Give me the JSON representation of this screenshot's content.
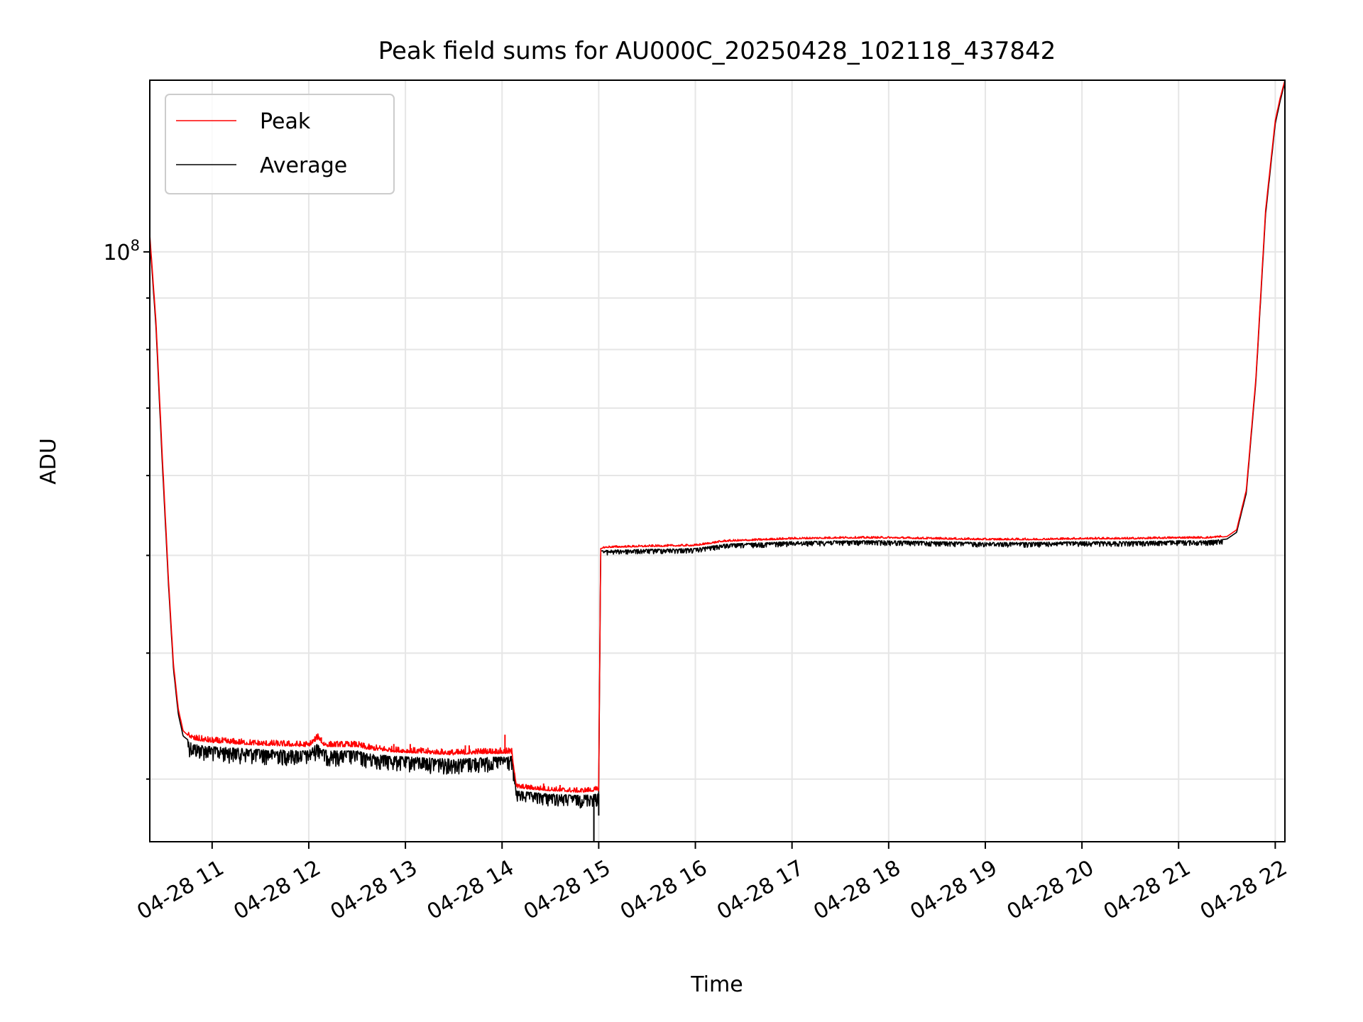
{
  "chart_data": {
    "type": "line",
    "title": "Peak field sums for AU000C_20250428_102118_437842",
    "xlabel": "Time",
    "ylabel": "ADU",
    "y_scale": "log",
    "y_major_tick": {
      "value": 100000000,
      "label_base": "10",
      "label_exp": "8"
    },
    "ylim": [
      26000000,
      148000000
    ],
    "x_unit": "hours on 2025-04-28",
    "xlim": [
      10.355,
      22.1
    ],
    "x_ticks": [
      {
        "value": 11,
        "label": "04-28 11"
      },
      {
        "value": 12,
        "label": "04-28 12"
      },
      {
        "value": 13,
        "label": "04-28 13"
      },
      {
        "value": 14,
        "label": "04-28 14"
      },
      {
        "value": 15,
        "label": "04-28 15"
      },
      {
        "value": 16,
        "label": "04-28 16"
      },
      {
        "value": 17,
        "label": "04-28 17"
      },
      {
        "value": 18,
        "label": "04-28 18"
      },
      {
        "value": 19,
        "label": "04-28 19"
      },
      {
        "value": 20,
        "label": "04-28 20"
      },
      {
        "value": 21,
        "label": "04-28 21"
      },
      {
        "value": 22,
        "label": "04-28 22"
      }
    ],
    "grid": true,
    "legend_position": "top-left",
    "series": [
      {
        "name": "Peak",
        "color": "#ff0000",
        "noise": "upper",
        "x": [
          10.355,
          10.42,
          10.48,
          10.55,
          10.6,
          10.65,
          10.7,
          10.8,
          11.0,
          11.5,
          12.0,
          12.1,
          12.15,
          12.2,
          12.5,
          12.6,
          12.9,
          13.2,
          13.5,
          13.8,
          14.1,
          14.15,
          14.3,
          14.5,
          14.8,
          15.0,
          15.02,
          15.1,
          15.5,
          16.0,
          16.3,
          17.0,
          17.5,
          18.0,
          19.0,
          19.5,
          20.0,
          20.5,
          21.0,
          21.3,
          21.5,
          21.6,
          21.7,
          21.8,
          21.9,
          22.0,
          22.05,
          22.1
        ],
        "y": [
          104000000,
          85000000,
          64000000,
          47000000,
          39000000,
          35200000,
          33500000,
          32800000,
          32600000,
          32400000,
          32300000,
          32900000,
          32400000,
          32300000,
          32300000,
          32100000,
          31900000,
          31800000,
          31700000,
          31800000,
          31800000,
          29400000,
          29300000,
          29200000,
          29100000,
          29200000,
          50800000,
          50900000,
          51000000,
          51100000,
          51600000,
          51900000,
          52000000,
          52000000,
          51800000,
          51800000,
          51900000,
          51900000,
          52000000,
          52000000,
          52200000,
          53000000,
          58000000,
          75000000,
          110000000,
          135000000,
          142000000,
          148000000
        ]
      },
      {
        "name": "Average",
        "color": "#000000",
        "noise": "lower",
        "x": [
          10.355,
          10.42,
          10.48,
          10.55,
          10.6,
          10.65,
          10.7,
          10.8,
          11.0,
          11.5,
          12.0,
          12.1,
          12.15,
          12.2,
          12.5,
          12.6,
          12.9,
          13.2,
          13.5,
          13.8,
          14.1,
          14.15,
          14.3,
          14.5,
          14.8,
          15.0,
          15.02,
          15.1,
          15.5,
          16.0,
          16.3,
          17.0,
          17.5,
          18.0,
          19.0,
          19.5,
          20.0,
          20.5,
          21.0,
          21.3,
          21.5,
          21.6,
          21.7,
          21.8,
          21.9,
          22.0,
          22.05,
          22.1
        ],
        "y": [
          103000000,
          84000000,
          63000000,
          46500000,
          38600000,
          34800000,
          33100000,
          32500000,
          32300000,
          32100000,
          32000000,
          32600000,
          32100000,
          32000000,
          32000000,
          31800000,
          31600000,
          31500000,
          31400000,
          31500000,
          31600000,
          29200000,
          29100000,
          29000000,
          28900000,
          29000000,
          50500000,
          50600000,
          50700000,
          50800000,
          51300000,
          51600000,
          51700000,
          51700000,
          51500000,
          51500000,
          51600000,
          51600000,
          51700000,
          51700000,
          51900000,
          52700000,
          57600000,
          74500000,
          109000000,
          134000000,
          141000000,
          147500000
        ]
      }
    ],
    "spikes": [
      {
        "x": 12.13,
        "y": 33000000
      },
      {
        "x": 12.88,
        "y": 32500000
      },
      {
        "x": 13.05,
        "y": 32500000
      },
      {
        "x": 13.62,
        "y": 32400000
      },
      {
        "x": 13.66,
        "y": 32400000
      },
      {
        "x": 14.03,
        "y": 33200000
      },
      {
        "x": 14.43,
        "y": 29700000
      },
      {
        "x": 14.6,
        "y": 29600000
      }
    ]
  }
}
